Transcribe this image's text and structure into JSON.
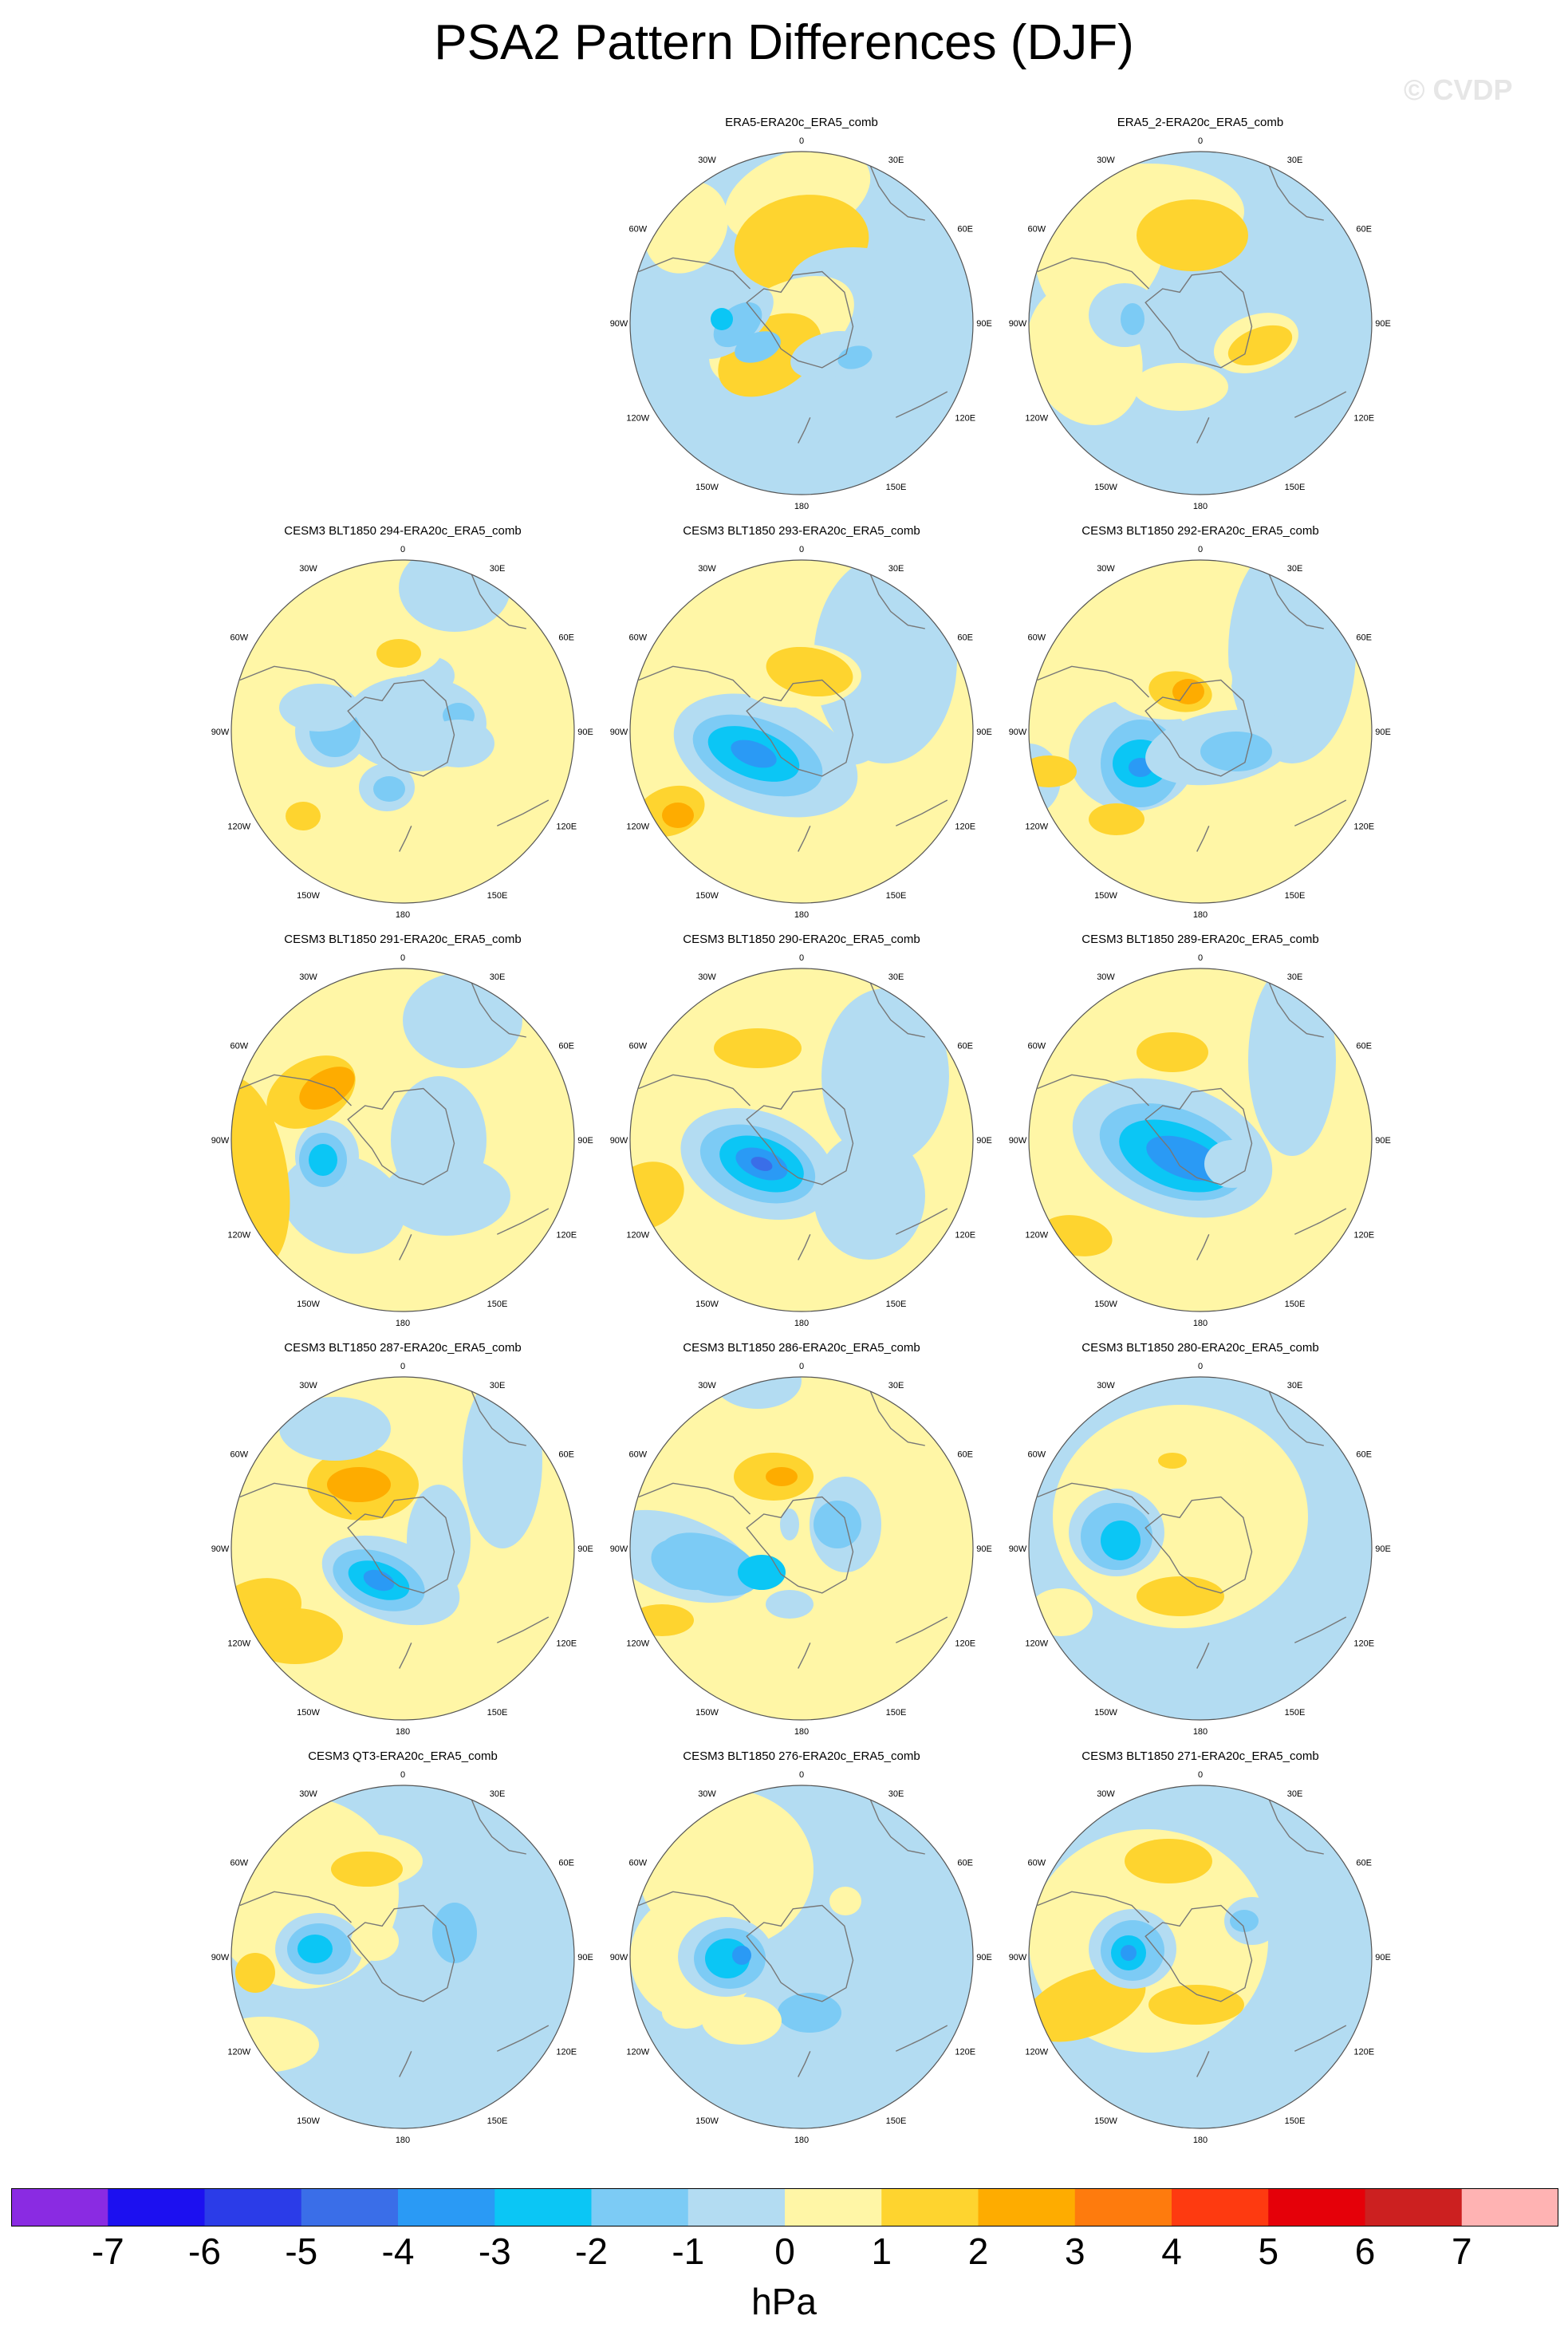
{
  "title": "PSA2 Pattern Differences (DJF)",
  "watermark": "© CVDP",
  "lon_labels": [
    "0",
    "30E",
    "60E",
    "90E",
    "120E",
    "150E",
    "180",
    "150W",
    "120W",
    "90W",
    "60W",
    "30W"
  ],
  "colors": {
    "background": "#ffffff",
    "land_outline": "#777777",
    "ring": "#555555"
  },
  "colorbar": {
    "colors": [
      "#8a2be2",
      "#1c10f0",
      "#2b3ce8",
      "#3a6ee8",
      "#2a9af5",
      "#0bc6f5",
      "#7ccbf5",
      "#b3dcf2",
      "#fff6a6",
      "#fed42f",
      "#feac00",
      "#fe7b0d",
      "#fe3a10",
      "#e50009",
      "#cc2020",
      "#ffb3b3"
    ],
    "labels": [
      "-7",
      "-6",
      "-5",
      "-4",
      "-3",
      "-2",
      "-1",
      "0",
      "1",
      "2",
      "3",
      "4",
      "5",
      "6",
      "7"
    ],
    "units": "hPa"
  },
  "panels": [
    {
      "title": "ERA5-ERA20c_ERA5_comb",
      "row": 0,
      "col": 1,
      "base": -1,
      "blobs": [
        [
          250,
          100,
          95,
          55,
          -20,
          1
        ],
        [
          255,
          160,
          85,
          60,
          -10,
          2
        ],
        [
          320,
          210,
          80,
          45,
          0,
          -1
        ],
        [
          230,
          270,
          100,
          55,
          -30,
          1
        ],
        [
          215,
          300,
          70,
          45,
          -30,
          2
        ],
        [
          170,
          260,
          60,
          30,
          -40,
          -1
        ],
        [
          175,
          262,
          35,
          22,
          -40,
          -2
        ],
        [
          155,
          255,
          14,
          14,
          0,
          -3
        ],
        [
          200,
          290,
          30,
          18,
          -20,
          -2
        ],
        [
          290,
          300,
          50,
          28,
          -15,
          -1
        ],
        [
          322,
          303,
          22,
          14,
          -15,
          -2
        ],
        [
          110,
          140,
          50,
          60,
          30,
          1
        ]
      ]
    },
    {
      "title": "ERA5_2-ERA20c_ERA5_comb",
      "row": 0,
      "col": 2,
      "base": -1,
      "blobs": [
        [
          130,
          160,
          80,
          100,
          20,
          1
        ],
        [
          190,
          120,
          120,
          60,
          0,
          1
        ],
        [
          245,
          150,
          70,
          45,
          0,
          2
        ],
        [
          110,
          300,
          70,
          90,
          -20,
          1
        ],
        [
          160,
          250,
          45,
          40,
          0,
          -1
        ],
        [
          170,
          255,
          15,
          20,
          0,
          -2
        ],
        [
          325,
          285,
          55,
          35,
          -20,
          1
        ],
        [
          330,
          288,
          42,
          22,
          -20,
          2
        ],
        [
          230,
          340,
          60,
          30,
          0,
          1
        ]
      ]
    },
    {
      "title": "CESM3 BLT1850 294-ERA20c_ERA5_comb",
      "row": 1,
      "col": 0,
      "base": 1,
      "blobs": [
        [
          320,
          80,
          70,
          55,
          0,
          -1
        ],
        [
          270,
          250,
          90,
          60,
          0,
          -1
        ],
        [
          165,
          260,
          45,
          45,
          0,
          -1
        ],
        [
          170,
          260,
          32,
          32,
          0,
          -2
        ],
        [
          290,
          190,
          30,
          24,
          0,
          -1
        ],
        [
          325,
          240,
          20,
          16,
          0,
          -2
        ],
        [
          235,
          330,
          35,
          30,
          0,
          -1
        ],
        [
          238,
          332,
          20,
          16,
          0,
          -2
        ],
        [
          120,
          360,
          35,
          28,
          0,
          1
        ],
        [
          130,
          366,
          22,
          18,
          0,
          2
        ],
        [
          325,
          275,
          45,
          30,
          0,
          -1
        ],
        [
          250,
          155,
          55,
          35,
          0,
          1
        ],
        [
          250,
          162,
          28,
          18,
          0,
          2
        ],
        [
          150,
          230,
          50,
          30,
          0,
          -1
        ]
      ]
    },
    {
      "title": "CESM3 BLT1850 293-ERA20c_ERA5_comb",
      "row": 1,
      "col": 1,
      "base": 1,
      "blobs": [
        [
          360,
          170,
          90,
          130,
          0,
          -1
        ],
        [
          210,
          290,
          120,
          70,
          20,
          -1
        ],
        [
          200,
          290,
          85,
          45,
          20,
          -2
        ],
        [
          195,
          288,
          60,
          30,
          20,
          -3
        ],
        [
          195,
          288,
          30,
          15,
          20,
          -4
        ],
        [
          315,
          280,
          35,
          22,
          0,
          -1
        ],
        [
          250,
          190,
          80,
          40,
          0,
          1
        ],
        [
          265,
          185,
          55,
          30,
          10,
          2
        ],
        [
          90,
          360,
          45,
          30,
          -20,
          2
        ],
        [
          100,
          365,
          20,
          16,
          0,
          3
        ]
      ]
    },
    {
      "title": "CESM3 BLT1850 292-ERA20c_ERA5_comb",
      "row": 1,
      "col": 2,
      "base": 1,
      "blobs": [
        [
          370,
          160,
          80,
          140,
          0,
          -1
        ],
        [
          170,
          290,
          80,
          70,
          0,
          -1
        ],
        [
          180,
          300,
          50,
          55,
          0,
          -2
        ],
        [
          180,
          300,
          35,
          30,
          0,
          -3
        ],
        [
          180,
          305,
          15,
          12,
          0,
          -4
        ],
        [
          280,
          280,
          95,
          45,
          -10,
          -1
        ],
        [
          300,
          285,
          45,
          25,
          0,
          -2
        ],
        [
          215,
          195,
          80,
          50,
          0,
          1
        ],
        [
          230,
          210,
          40,
          25,
          10,
          2
        ],
        [
          240,
          210,
          20,
          16,
          0,
          3
        ],
        [
          40,
          320,
          40,
          45,
          0,
          -1
        ],
        [
          65,
          310,
          35,
          20,
          0,
          2
        ],
        [
          150,
          370,
          35,
          20,
          0,
          2
        ]
      ]
    },
    {
      "title": "CESM3 BLT1850 291-ERA20c_ERA5_comb",
      "row": 2,
      "col": 0,
      "base": 1,
      "blobs": [
        [
          330,
          110,
          75,
          60,
          0,
          -1
        ],
        [
          300,
          260,
          60,
          80,
          0,
          -1
        ],
        [
          310,
          330,
          80,
          50,
          0,
          -1
        ],
        [
          180,
          340,
          80,
          60,
          20,
          -1
        ],
        [
          160,
          280,
          40,
          45,
          0,
          -1
        ],
        [
          155,
          285,
          30,
          34,
          0,
          -2
        ],
        [
          155,
          285,
          18,
          20,
          0,
          -3
        ],
        [
          60,
          300,
          50,
          120,
          -10,
          2
        ],
        [
          140,
          200,
          60,
          40,
          -30,
          2
        ],
        [
          160,
          195,
          38,
          22,
          -30,
          3
        ],
        [
          220,
          150,
          20,
          10,
          0,
          1
        ]
      ]
    },
    {
      "title": "CESM3 BLT1850 290-ERA20c_ERA5_comb",
      "row": 2,
      "col": 1,
      "base": 1,
      "blobs": [
        [
          360,
          180,
          80,
          110,
          0,
          -1
        ],
        [
          340,
          330,
          70,
          80,
          0,
          -1
        ],
        [
          200,
          290,
          100,
          65,
          20,
          -1
        ],
        [
          200,
          290,
          75,
          45,
          20,
          -2
        ],
        [
          205,
          290,
          55,
          32,
          20,
          -3
        ],
        [
          205,
          290,
          34,
          18,
          20,
          -4
        ],
        [
          205,
          290,
          14,
          8,
          20,
          -5
        ],
        [
          200,
          145,
          55,
          25,
          0,
          2
        ],
        [
          60,
          330,
          50,
          40,
          -30,
          2
        ],
        [
          310,
          200,
          14,
          16,
          0,
          -1
        ]
      ]
    },
    {
      "title": "CESM3 BLT1850 289-ERA20c_ERA5_comb",
      "row": 2,
      "col": 2,
      "base": 1,
      "blobs": [
        [
          220,
          270,
          130,
          80,
          20,
          -1
        ],
        [
          220,
          275,
          95,
          55,
          20,
          -2
        ],
        [
          225,
          280,
          75,
          40,
          20,
          -3
        ],
        [
          235,
          283,
          50,
          24,
          20,
          -4
        ],
        [
          370,
          160,
          55,
          120,
          0,
          -1
        ],
        [
          100,
          380,
          45,
          25,
          10,
          2
        ],
        [
          220,
          150,
          45,
          25,
          0,
          2
        ],
        [
          295,
          290,
          35,
          30,
          0,
          -1
        ]
      ]
    },
    {
      "title": "CESM3 BLT1850 287-ERA20c_ERA5_comb",
      "row": 3,
      "col": 0,
      "base": 1,
      "blobs": [
        [
          380,
          150,
          50,
          110,
          0,
          -1
        ],
        [
          300,
          250,
          40,
          70,
          0,
          -1
        ],
        [
          240,
          300,
          90,
          50,
          20,
          -1
        ],
        [
          225,
          300,
          60,
          35,
          20,
          -2
        ],
        [
          225,
          300,
          40,
          22,
          20,
          -3
        ],
        [
          225,
          300,
          20,
          12,
          20,
          -4
        ],
        [
          205,
          180,
          70,
          45,
          0,
          2
        ],
        [
          200,
          180,
          40,
          22,
          0,
          3
        ],
        [
          70,
          340,
          60,
          40,
          -20,
          2
        ],
        [
          120,
          370,
          60,
          35,
          0,
          2
        ],
        [
          170,
          110,
          70,
          40,
          0,
          -1
        ]
      ]
    },
    {
      "title": "CESM3 BLT1850 286-ERA20c_ERA5_comb",
      "row": 3,
      "col": 1,
      "base": 1,
      "blobs": [
        [
          100,
          270,
          100,
          50,
          20,
          -1
        ],
        [
          110,
          280,
          45,
          30,
          20,
          -2
        ],
        [
          140,
          280,
          65,
          35,
          20,
          -2
        ],
        [
          205,
          290,
          30,
          22,
          0,
          -3
        ],
        [
          310,
          230,
          45,
          60,
          0,
          -1
        ],
        [
          300,
          230,
          30,
          30,
          0,
          -2
        ],
        [
          220,
          170,
          50,
          30,
          0,
          2
        ],
        [
          230,
          170,
          20,
          12,
          0,
          3
        ],
        [
          240,
          330,
          30,
          18,
          0,
          -1
        ],
        [
          80,
          350,
          40,
          20,
          0,
          2
        ],
        [
          240,
          230,
          12,
          20,
          0,
          -1
        ],
        [
          200,
          50,
          55,
          35,
          0,
          -1
        ]
      ]
    },
    {
      "title": "CESM3 BLT1850 280-ERA20c_ERA5_comb",
      "row": 3,
      "col": 2,
      "base": -1,
      "blobs": [
        [
          230,
          220,
          160,
          140,
          0,
          1
        ],
        [
          150,
          240,
          60,
          55,
          0,
          -1
        ],
        [
          150,
          245,
          45,
          42,
          0,
          -2
        ],
        [
          155,
          250,
          25,
          25,
          0,
          -3
        ],
        [
          230,
          320,
          55,
          25,
          0,
          2
        ],
        [
          220,
          150,
          18,
          10,
          0,
          2
        ],
        [
          80,
          340,
          40,
          30,
          0,
          1
        ]
      ]
    },
    {
      "title": "CESM3 QT3-ERA20c_ERA5_comb",
      "row": 4,
      "col": 0,
      "base": -1,
      "blobs": [
        [
          130,
          180,
          120,
          120,
          0,
          1
        ],
        [
          200,
          140,
          80,
          35,
          0,
          1
        ],
        [
          210,
          150,
          45,
          22,
          0,
          2
        ],
        [
          150,
          250,
          55,
          45,
          0,
          -1
        ],
        [
          150,
          250,
          40,
          32,
          0,
          -2
        ],
        [
          145,
          250,
          22,
          18,
          0,
          -3
        ],
        [
          80,
          370,
          70,
          35,
          0,
          1
        ],
        [
          220,
          240,
          30,
          25,
          0,
          1
        ],
        [
          320,
          230,
          28,
          38,
          0,
          -2
        ],
        [
          70,
          280,
          25,
          25,
          0,
          2
        ]
      ]
    },
    {
      "title": "CESM3 BLT1850 276-ERA20c_ERA5_comb",
      "row": 4,
      "col": 1,
      "base": -1,
      "blobs": [
        [
          160,
          150,
          110,
          100,
          0,
          1
        ],
        [
          120,
          260,
          80,
          80,
          0,
          1
        ],
        [
          160,
          260,
          60,
          50,
          0,
          -1
        ],
        [
          165,
          262,
          45,
          38,
          0,
          -2
        ],
        [
          162,
          262,
          28,
          25,
          0,
          -3
        ],
        [
          180,
          258,
          12,
          12,
          0,
          -4
        ],
        [
          260,
          330,
          60,
          40,
          0,
          -1
        ],
        [
          265,
          330,
          40,
          25,
          0,
          -2
        ],
        [
          180,
          340,
          50,
          30,
          0,
          1
        ],
        [
          310,
          190,
          20,
          18,
          0,
          1
        ],
        [
          110,
          330,
          30,
          20,
          0,
          1
        ]
      ]
    },
    {
      "title": "CESM3 BLT1850 271-ERA20c_ERA5_comb",
      "row": 4,
      "col": 2,
      "base": -1,
      "blobs": [
        [
          190,
          240,
          150,
          140,
          0,
          1
        ],
        [
          110,
          320,
          80,
          40,
          -20,
          2
        ],
        [
          250,
          320,
          60,
          25,
          0,
          2
        ],
        [
          170,
          250,
          55,
          50,
          0,
          -1
        ],
        [
          170,
          252,
          40,
          38,
          0,
          -2
        ],
        [
          165,
          255,
          22,
          22,
          0,
          -3
        ],
        [
          165,
          255,
          10,
          10,
          0,
          -4
        ],
        [
          215,
          140,
          55,
          28,
          0,
          2
        ],
        [
          320,
          215,
          35,
          30,
          0,
          -1
        ],
        [
          310,
          215,
          18,
          14,
          0,
          -2
        ]
      ]
    }
  ]
}
